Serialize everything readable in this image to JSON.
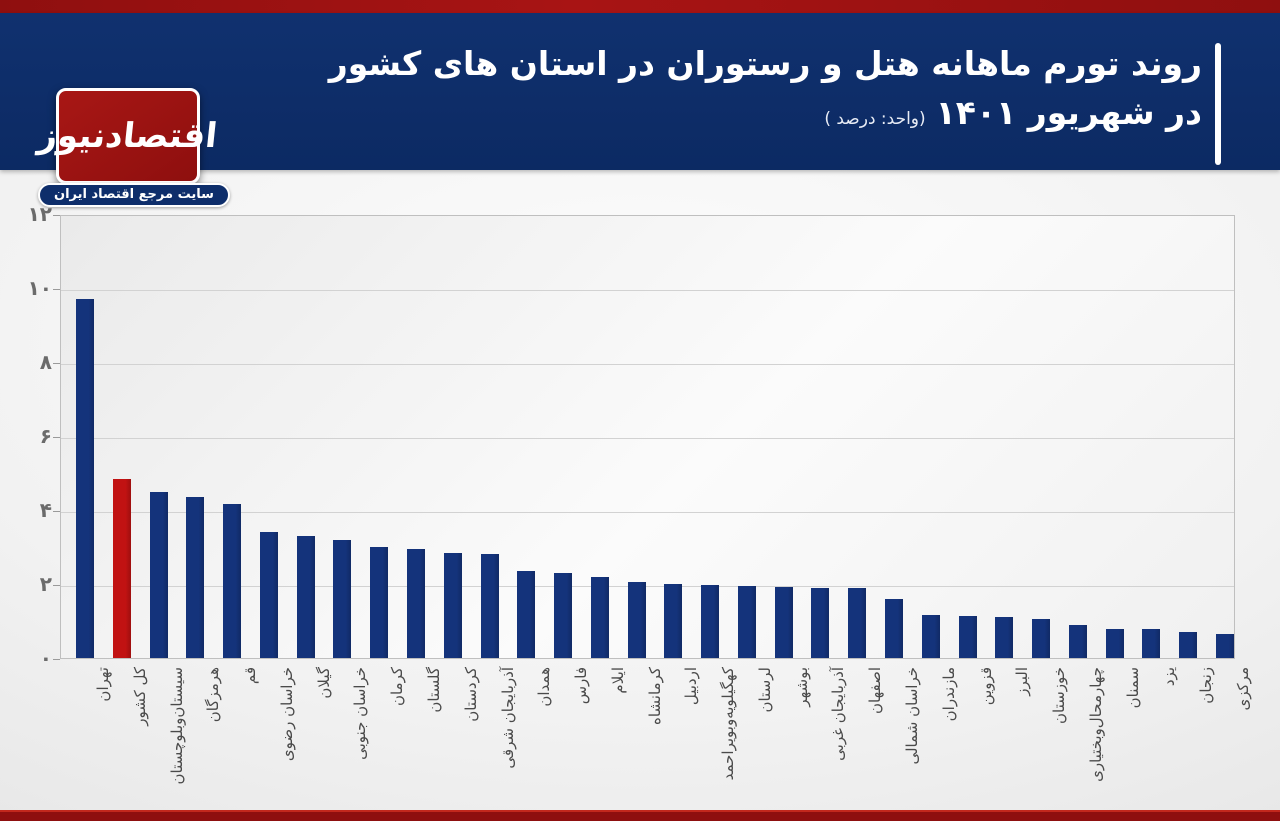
{
  "header": {
    "title_line1": "روند تورم ماهانه هتل و رستوران در استان های کشور",
    "title_line2": "در شهریور ۱۴۰۱",
    "title_unit": "(واحد: درصد )",
    "logo_text": "اقتصادنیوز",
    "logo_subtitle": "سایت مرجع اقتصاد ایران"
  },
  "colors": {
    "banner_blue": "#0e2e6b",
    "strip_red_dark": "#8e0f0f",
    "strip_red_bright": "#c2281d",
    "bar_blue": "#14337b",
    "bar_red": "#c11212",
    "axis_text": "#6b6b6b",
    "label_text": "#4a4a4a"
  },
  "chart_data": {
    "type": "bar",
    "title": "روند تورم ماهانه هتل و رستوران در استان های کشور در شهریور ۱۴۰۱",
    "unit_label": "(واحد: درصد )",
    "categories": [
      "تهران",
      "کل کشور",
      "سیستان‌وبلوچستان",
      "هرمزگان",
      "قم",
      "خراسان رضوی",
      "گیلان",
      "خراسان جنوبی",
      "کرمان",
      "گلستان",
      "کردستان",
      "آذربایجان شرقی",
      "همدان",
      "فارس",
      "ایلام",
      "کرمانشاه",
      "اردبیل",
      "کهگیلویه‌وبویراحمد",
      "لرستان",
      "بوشهر",
      "آذربایجان غربی",
      "اصفهان",
      "خراسان شمالی",
      "مازندران",
      "قزوین",
      "البرز",
      "خوزستان",
      "چهارمحال‌وبختیاری",
      "سمنان",
      "یزد",
      "زنجان",
      "مرکزی"
    ],
    "values": [
      9.7,
      4.85,
      4.5,
      4.35,
      4.15,
      3.4,
      3.3,
      3.2,
      3.0,
      2.95,
      2.85,
      2.8,
      2.35,
      2.3,
      2.2,
      2.05,
      2.0,
      1.97,
      1.95,
      1.92,
      1.9,
      1.9,
      1.6,
      1.15,
      1.13,
      1.12,
      1.05,
      0.9,
      0.78,
      0.78,
      0.7,
      0.65
    ],
    "highlight_category": "کل کشور",
    "highlight_index": 1,
    "bar_color": "#14337b",
    "highlight_color": "#c11212",
    "ylim": [
      0,
      12
    ],
    "ytick_values": [
      0,
      2,
      4,
      6,
      8,
      10,
      12
    ],
    "ytick_labels": [
      "۰",
      "۲",
      "۴",
      "۶",
      "۸",
      "۱۰",
      "۱۲"
    ],
    "grid": true,
    "legend": false,
    "xlabel": "",
    "ylabel": "",
    "tick_label_rotation": -90
  }
}
